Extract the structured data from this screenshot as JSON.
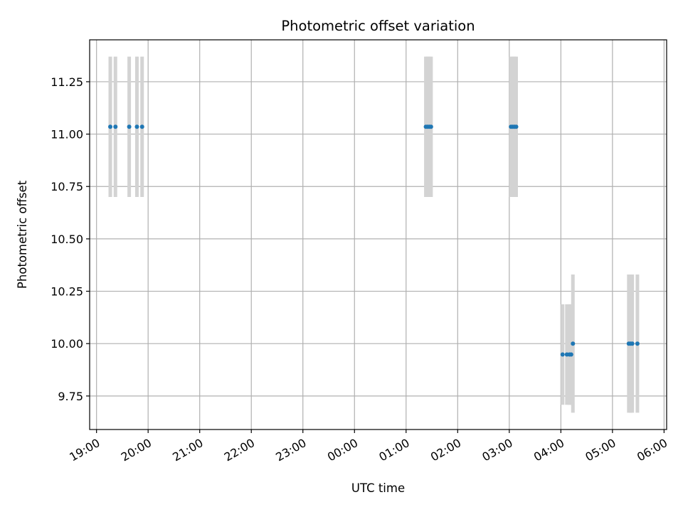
{
  "chart_data": {
    "type": "scatter",
    "title": "Photometric offset variation",
    "xlabel": "UTC time",
    "ylabel": "Photometric offset",
    "x_axis_kind": "time",
    "x_range": [
      "18:52",
      "06:03"
    ],
    "x_ticks": [
      "19:00",
      "20:00",
      "21:00",
      "22:00",
      "23:00",
      "00:00",
      "01:00",
      "02:00",
      "03:00",
      "04:00",
      "05:00",
      "06:00"
    ],
    "ylim": [
      9.59,
      11.45
    ],
    "y_ticks": [
      "9.75",
      "10.00",
      "10.25",
      "10.50",
      "10.75",
      "11.00",
      "11.25"
    ],
    "grid": true,
    "colors": {
      "points": "#1f77b4",
      "error_bars": "#d3d3d3",
      "grid": "#b0b0b0"
    },
    "points": [
      {
        "x": "19:16",
        "y": 11.035,
        "err": 0.335
      },
      {
        "x": "19:22",
        "y": 11.035,
        "err": 0.335
      },
      {
        "x": "19:38",
        "y": 11.035,
        "err": 0.335
      },
      {
        "x": "19:47",
        "y": 11.035,
        "err": 0.335
      },
      {
        "x": "19:53",
        "y": 11.035,
        "err": 0.335
      },
      {
        "x": "01:23",
        "y": 11.035,
        "err": 0.335
      },
      {
        "x": "01:25",
        "y": 11.035,
        "err": 0.335
      },
      {
        "x": "01:27",
        "y": 11.035,
        "err": 0.335
      },
      {
        "x": "01:29",
        "y": 11.035,
        "err": 0.335
      },
      {
        "x": "03:02",
        "y": 11.035,
        "err": 0.335
      },
      {
        "x": "03:04",
        "y": 11.035,
        "err": 0.335
      },
      {
        "x": "03:06",
        "y": 11.035,
        "err": 0.335
      },
      {
        "x": "03:08",
        "y": 11.035,
        "err": 0.335
      },
      {
        "x": "04:02",
        "y": 9.948,
        "err": 0.24
      },
      {
        "x": "04:07",
        "y": 9.948,
        "err": 0.24
      },
      {
        "x": "04:10",
        "y": 9.948,
        "err": 0.24
      },
      {
        "x": "04:12",
        "y": 9.948,
        "err": 0.24
      },
      {
        "x": "04:14",
        "y": 10.0,
        "err": 0.33
      },
      {
        "x": "05:19",
        "y": 10.0,
        "err": 0.33
      },
      {
        "x": "05:21",
        "y": 10.0,
        "err": 0.33
      },
      {
        "x": "05:23",
        "y": 10.0,
        "err": 0.33
      },
      {
        "x": "05:29",
        "y": 10.0,
        "err": 0.33
      }
    ]
  }
}
